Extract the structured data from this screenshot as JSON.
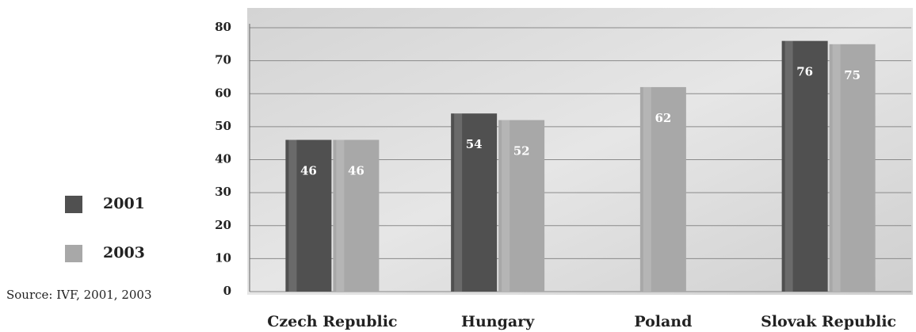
{
  "chart_data": {
    "type": "bar",
    "categories": [
      "Czech Republic",
      "Hungary",
      "Poland",
      "Slovak Republic"
    ],
    "series": [
      {
        "name": "2001",
        "color": "#505050",
        "values": [
          46,
          54,
          null,
          76
        ]
      },
      {
        "name": "2003",
        "color": "#a8a8a8",
        "values": [
          46,
          52,
          62,
          75
        ]
      }
    ],
    "ylim": [
      0,
      80
    ],
    "yticks": [
      0,
      10,
      20,
      30,
      40,
      50,
      60,
      70,
      80
    ],
    "grid": true,
    "legend": "left",
    "annotation": "Source: IVF, 2001, 2003"
  }
}
